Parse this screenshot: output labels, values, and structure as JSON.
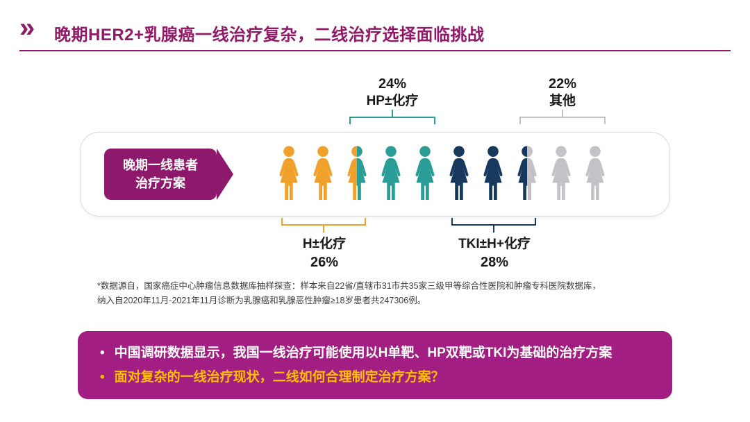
{
  "header": {
    "chevron": "»",
    "title": "晚期HER2+乳腺癌一线治疗复杂，二线治疗选择面临挑战"
  },
  "colors": {
    "title_purple": "#8E1A68",
    "label_purple": "#8E186B",
    "box_purple": "#A21E82",
    "orange": "#F0A12C",
    "teal": "#2A9D96",
    "navy": "#17395E",
    "gray": "#C3C3C7",
    "white": "#FFFFFF",
    "yellow": "#FFC000"
  },
  "diagram": {
    "label": {
      "line1": "晚期一线患者",
      "line2": "治疗方案"
    },
    "figures": [
      "orange",
      "orange",
      "split-orange-teal",
      "teal",
      "teal",
      "navy",
      "navy",
      "split-navy-gray",
      "gray",
      "gray"
    ],
    "annotations": {
      "top": [
        {
          "pct": "24%",
          "name": "HP±化疗",
          "color": "teal"
        },
        {
          "pct": "22%",
          "name": "其他",
          "color": "gray"
        }
      ],
      "bottom": [
        {
          "name": "H±化疗",
          "pct": "26%",
          "color": "orange"
        },
        {
          "name": "TKI±H+化疗",
          "pct": "28%",
          "color": "navy"
        }
      ]
    }
  },
  "footnote": {
    "line1": "*数据源自，国家癌症中心肿瘤信息数据库抽样探查：样本来自22省/直辖市31市共35家三级甲等综合性医院和肿瘤专科医院数据库，",
    "line2": "纳入自2020年11月-2021年11月诊断为乳腺癌和乳腺恶性肿瘤≥18岁患者共247306例。"
  },
  "summary": {
    "bullet_char": "•",
    "bullets": [
      {
        "text": "中国调研数据显示，我国一线治疗可能使用以H单靶、HP双靶或TKI为基础的治疗方案",
        "color": "white"
      },
      {
        "text": "面对复杂的一线治疗现状，二线如何合理制定治疗方案？",
        "color": "yellow"
      }
    ]
  },
  "chart_data": {
    "type": "pictograph",
    "title": "晚期一线患者治疗方案",
    "categories": [
      "H±化疗",
      "HP±化疗",
      "TKI±H+化疗",
      "其他"
    ],
    "values": [
      26,
      24,
      28,
      22
    ],
    "unit": "%",
    "icon": "female-person",
    "total_icons": 10,
    "icon_value": 10,
    "colors": [
      "#F0A12C",
      "#2A9D96",
      "#17395E",
      "#C3C3C7"
    ],
    "legend_position": "brackets-above-and-below"
  }
}
